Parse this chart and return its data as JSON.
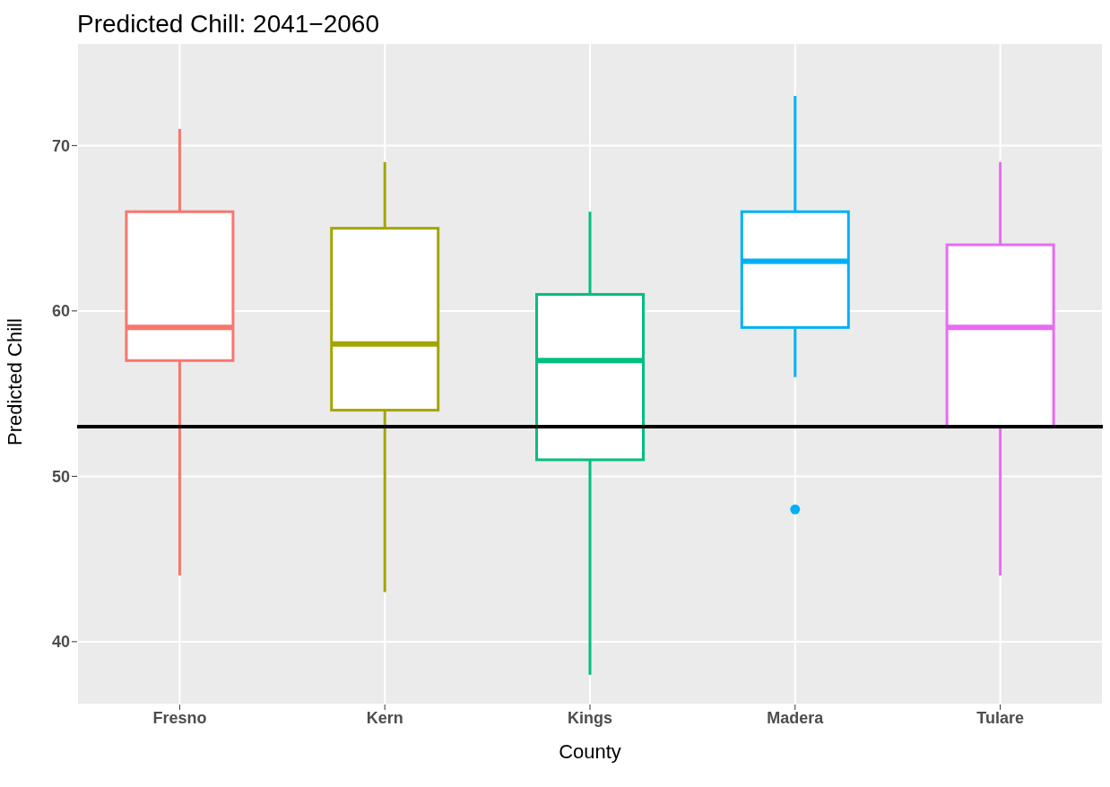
{
  "chart_data": {
    "type": "box",
    "title": "Predicted Chill: 2041−2060",
    "xlabel": "County",
    "ylabel": "Predicted Chill",
    "categories": [
      "Fresno",
      "Kern",
      "Kings",
      "Madera",
      "Tulare"
    ],
    "colors": [
      "#f8766d",
      "#a3a500",
      "#00bf7d",
      "#00b0f6",
      "#e76bf3"
    ],
    "boxes": [
      {
        "low": 44,
        "q1": 57,
        "median": 59,
        "q3": 66,
        "high": 71
      },
      {
        "low": 43,
        "q1": 54,
        "median": 58,
        "q3": 65,
        "high": 69
      },
      {
        "low": 38,
        "q1": 51,
        "median": 57,
        "q3": 61,
        "high": 66
      },
      {
        "low": 56,
        "q1": 59,
        "median": 63,
        "q3": 66,
        "high": 73,
        "outliers": [
          48
        ]
      },
      {
        "low": 44,
        "q1": 53,
        "median": 59,
        "q3": 64,
        "high": 69
      }
    ],
    "ylim": [
      36.2,
      76.2
    ],
    "yticks": [
      40,
      50,
      60,
      70
    ],
    "grid": true,
    "ref_lines": [
      {
        "axis": "y",
        "value": 53,
        "color": "#000000"
      }
    ]
  }
}
